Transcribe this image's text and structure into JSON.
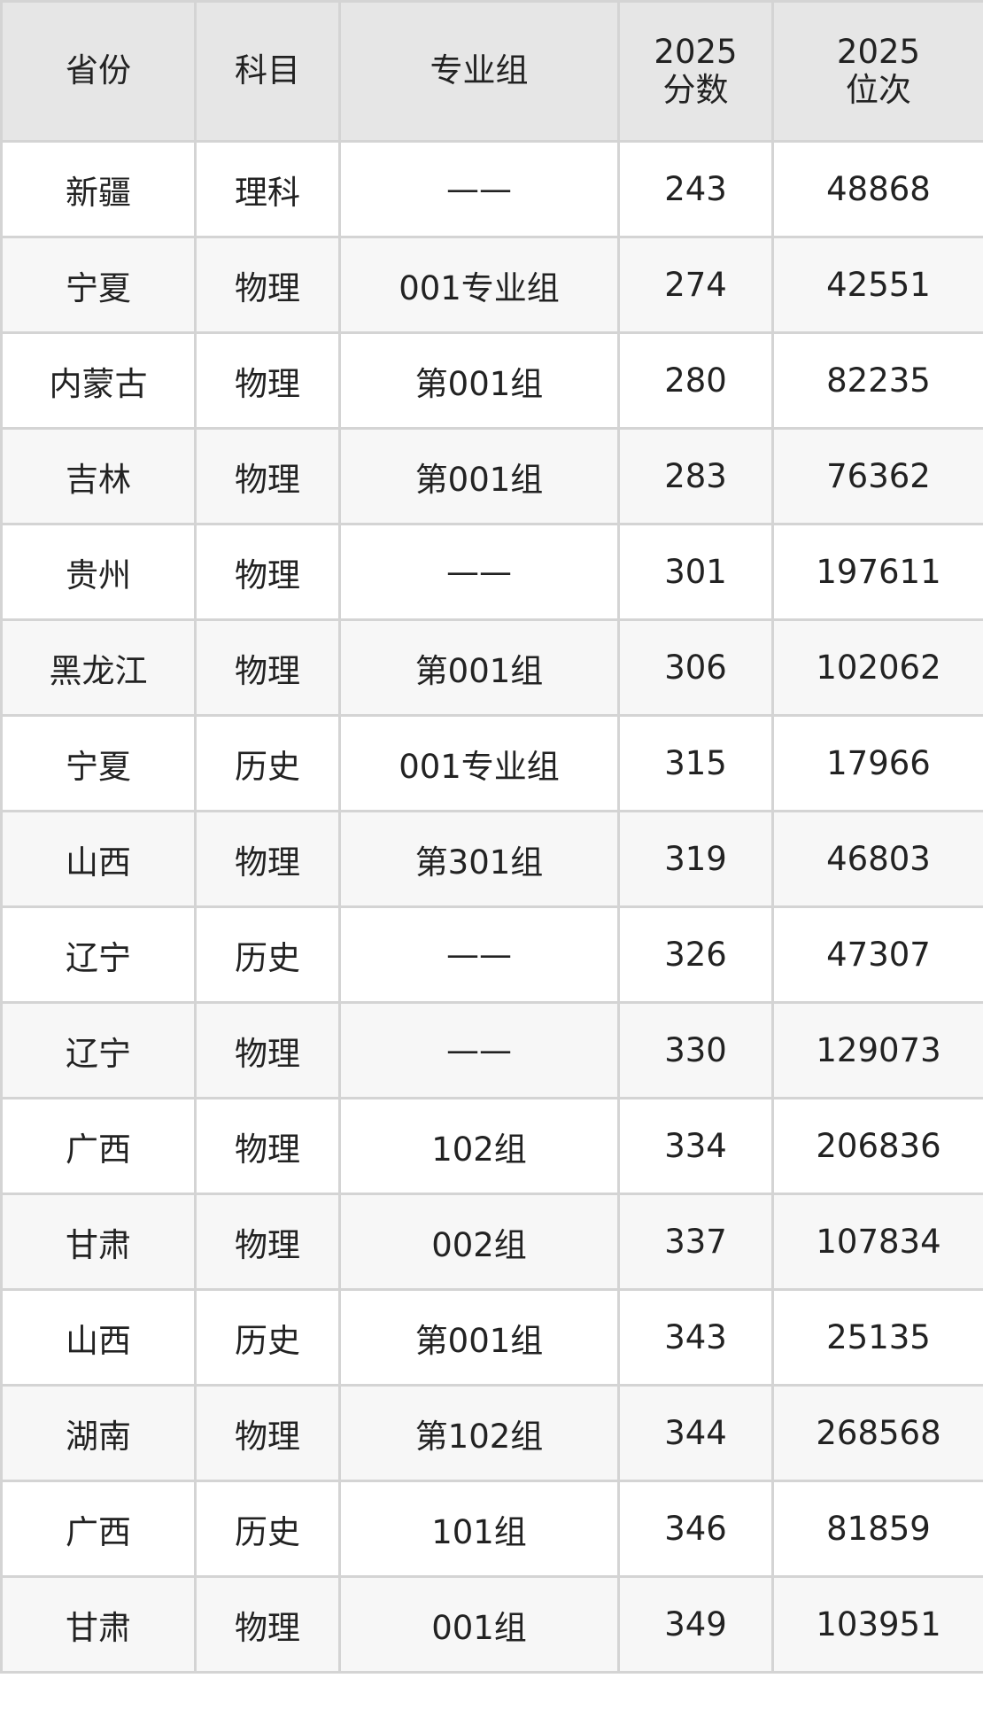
{
  "headers": [
    "省份",
    "科目",
    "专业组",
    "2025\n分数",
    "2025\n位次"
  ],
  "header_lines": [
    [
      "省份"
    ],
    [
      "科目"
    ],
    [
      "专业组"
    ],
    [
      "2025",
      "分数"
    ],
    [
      "2025",
      "位次"
    ]
  ],
  "rows": [
    [
      "新疆",
      "理科",
      "——",
      "243",
      "48868"
    ],
    [
      "宁夏",
      "物理",
      "001专业组",
      "274",
      "42551"
    ],
    [
      "内蒙古",
      "物理",
      "第001组",
      "280",
      "82235"
    ],
    [
      "吉林",
      "物理",
      "第001组",
      "283",
      "76362"
    ],
    [
      "贵州",
      "物理",
      "——",
      "301",
      "197611"
    ],
    [
      "黑龙江",
      "物理",
      "第001组",
      "306",
      "102062"
    ],
    [
      "宁夏",
      "历史",
      "001专业组",
      "315",
      "17966"
    ],
    [
      "山西",
      "物理",
      "第301组",
      "319",
      "46803"
    ],
    [
      "辽宁",
      "历史",
      "——",
      "326",
      "47307"
    ],
    [
      "辽宁",
      "物理",
      "——",
      "330",
      "129073"
    ],
    [
      "广西",
      "物理",
      "102组",
      "334",
      "206836"
    ],
    [
      "甘肃",
      "物理",
      "002组",
      "337",
      "107834"
    ],
    [
      "山西",
      "历史",
      "第001组",
      "343",
      "25135"
    ],
    [
      "湖南",
      "物理",
      "第102组",
      "344",
      "268568"
    ],
    [
      "广西",
      "历史",
      "101组",
      "346",
      "81859"
    ],
    [
      "甘肃",
      "物理",
      "001组",
      "349",
      "103951"
    ]
  ],
  "colors": {
    "header_bg": "#e6e6e6",
    "row_alt_bg": "#f7f7f7",
    "border": "#d4d4d4"
  }
}
